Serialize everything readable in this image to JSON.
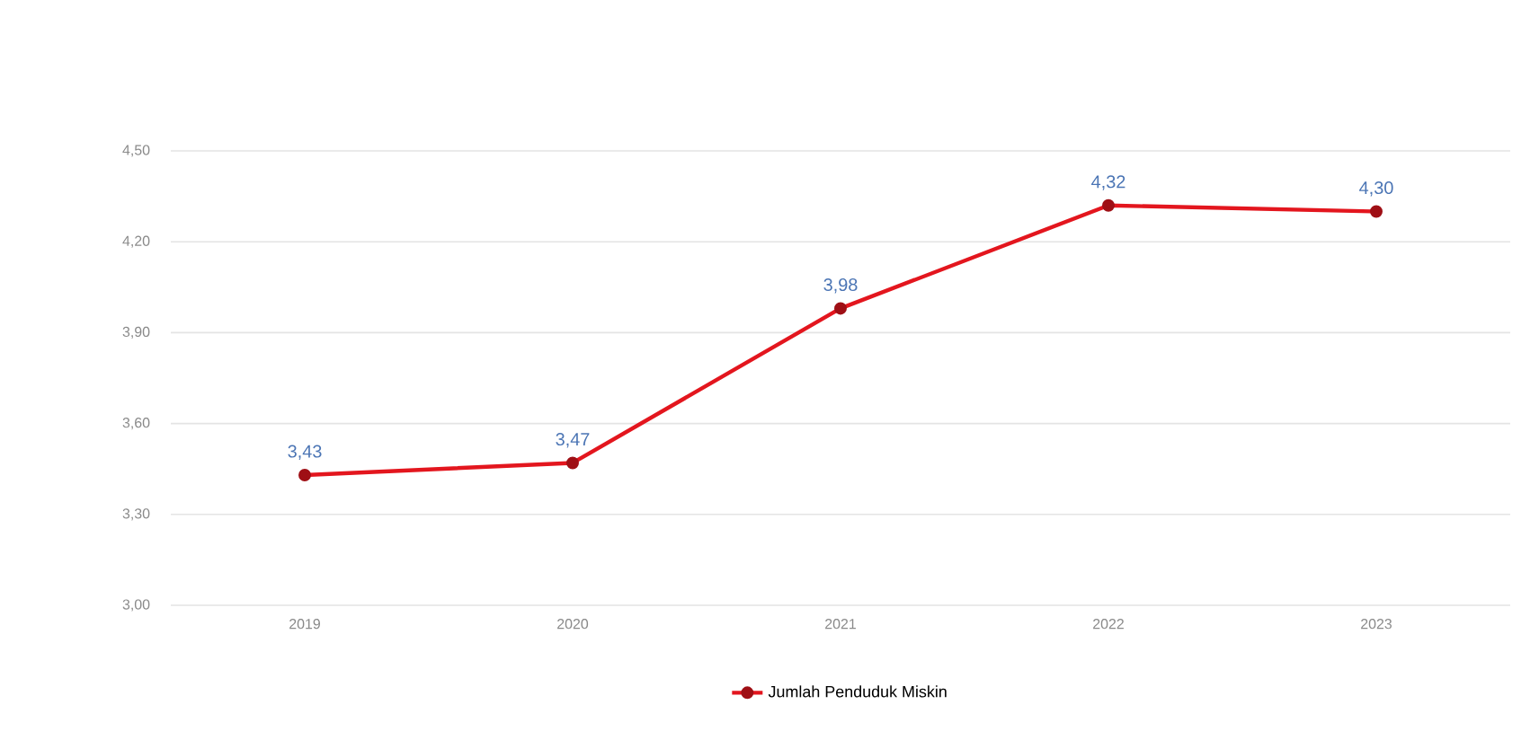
{
  "chart_data": {
    "type": "line",
    "categories": [
      "2019",
      "2020",
      "2021",
      "2022",
      "2023"
    ],
    "series": [
      {
        "name": "Jumlah Penduduk Miskin",
        "color": "#e3161e",
        "values": [
          3.43,
          3.47,
          3.98,
          4.32,
          4.3
        ],
        "value_labels": [
          "3,43",
          "3,47",
          "3,98",
          "4,32",
          "4,30"
        ]
      }
    ],
    "ylim": [
      3.0,
      4.5
    ],
    "yticks": [
      {
        "value": 3.0,
        "label": "3,00"
      },
      {
        "value": 3.3,
        "label": "3,30"
      },
      {
        "value": 3.6,
        "label": "3,60"
      },
      {
        "value": 3.9,
        "label": "3,90"
      },
      {
        "value": 4.2,
        "label": "4,20"
      },
      {
        "value": 4.5,
        "label": "4,50"
      }
    ],
    "grid": "y",
    "legend": "bottom",
    "marker": "circle",
    "line_style": "solid"
  }
}
